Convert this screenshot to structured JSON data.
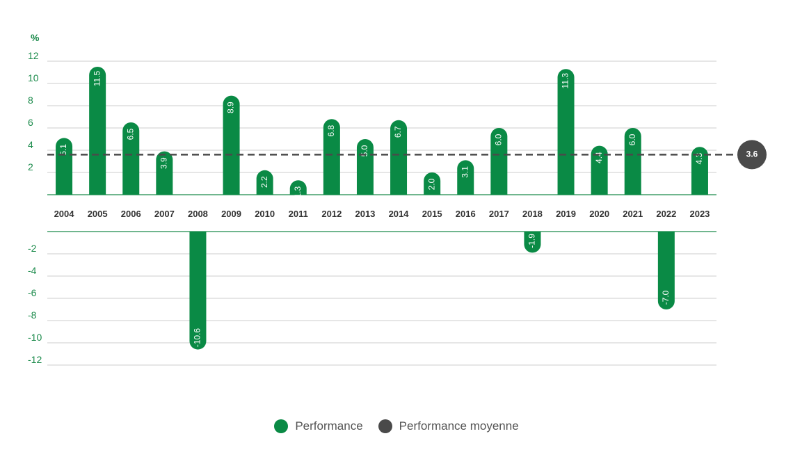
{
  "chart_data": {
    "type": "bar",
    "unit": "%",
    "categories": [
      "2004",
      "2005",
      "2006",
      "2007",
      "2008",
      "2009",
      "2010",
      "2011",
      "2012",
      "2013",
      "2014",
      "2015",
      "2016",
      "2017",
      "2018",
      "2019",
      "2020",
      "2021",
      "2022",
      "2023"
    ],
    "series": [
      {
        "name": "Performance",
        "values": [
          5.1,
          11.5,
          6.5,
          3.9,
          -10.6,
          8.9,
          2.2,
          1.3,
          6.8,
          5.0,
          6.7,
          2.0,
          3.1,
          6.0,
          -1.9,
          11.3,
          4.4,
          6.0,
          -7.0,
          4.3
        ]
      }
    ],
    "average": {
      "name": "Performance moyenne",
      "value": 3.6
    },
    "value_labels": [
      "5.1",
      "11.5",
      "6.5",
      "3.9",
      "-10.6",
      "8.9",
      "2.2",
      "1.3",
      "6.8",
      "5.0",
      "6.7",
      "2.0",
      "3.1",
      "6.0",
      "-1.9",
      "11.3",
      "4.4",
      "6.0",
      "-7.0",
      "4.3"
    ],
    "average_label": "3.6",
    "positive_ticks": [
      "2",
      "4",
      "6",
      "8",
      "10",
      "12"
    ],
    "negative_ticks": [
      "-2",
      "-4",
      "-6",
      "-8",
      "-10",
      "-12"
    ],
    "ylim": [
      -12,
      12
    ],
    "grid": true,
    "legend_position": "bottom-center",
    "colors": {
      "bar": "#0a8a45",
      "average": "#4a4a4a",
      "grid": "#cccccc",
      "axis": "#1a8a4a"
    }
  },
  "legend": {
    "items": [
      {
        "label": "Performance",
        "color": "#0a8a45"
      },
      {
        "label": "Performance moyenne",
        "color": "#4a4a4a"
      }
    ]
  }
}
